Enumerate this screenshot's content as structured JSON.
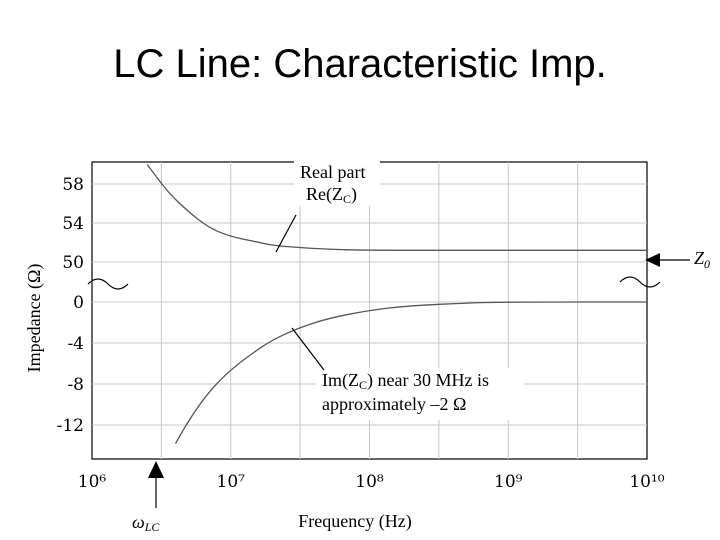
{
  "slide": {
    "title": "LC Line: Characteristic Imp."
  },
  "chart_data": {
    "type": "line",
    "title": "",
    "xlabel": "Frequency (Hz)",
    "ylabel": "Impedance (Ω)",
    "xscale": "log",
    "x_tick_labels": [
      "10⁶",
      "10⁷",
      "10⁸",
      "10⁹",
      "10¹⁰"
    ],
    "y_tick_labels": [
      "58",
      "54",
      "50",
      "0",
      "-4",
      "-8",
      "-12"
    ],
    "axis_break": "between 50 and 0 (wavy break marks)",
    "grid": true,
    "series": [
      {
        "name": "Re(Zc)",
        "x": [
          2500000.0,
          3500000.0,
          5000000.0,
          7000000.0,
          10000000.0,
          15000000.0,
          20000000.0,
          30000000.0,
          50000000.0,
          100000000.0,
          1000000000.0,
          10000000000.0
        ],
        "y": [
          60,
          57.2,
          55.1,
          53.5,
          52.6,
          52.1,
          51.7,
          51.5,
          51.3,
          51.2,
          51.2,
          51.2
        ]
      },
      {
        "name": "Im(Zc)",
        "x": [
          4000000.0,
          5000000.0,
          7000000.0,
          10000000.0,
          15000000.0,
          20000000.0,
          30000000.0,
          50000000.0,
          100000000.0,
          200000000.0,
          500000000.0,
          1000000000.0,
          10000000000.0
        ],
        "y": [
          -13.8,
          -11.5,
          -8.7,
          -6.6,
          -4.8,
          -3.7,
          -2.6,
          -1.6,
          -0.8,
          -0.35,
          -0.1,
          0,
          0
        ]
      }
    ],
    "annotations": {
      "real_label": [
        "Real part",
        "Re(Z",
        "C",
        ")"
      ],
      "imag_label": [
        "Im(Z",
        "C",
        ") near 30 MHz is",
        "approximately –2 Ω"
      ],
      "z0_label": [
        "Z",
        "0"
      ],
      "omega_label": [
        "ω",
        "LC"
      ]
    }
  }
}
